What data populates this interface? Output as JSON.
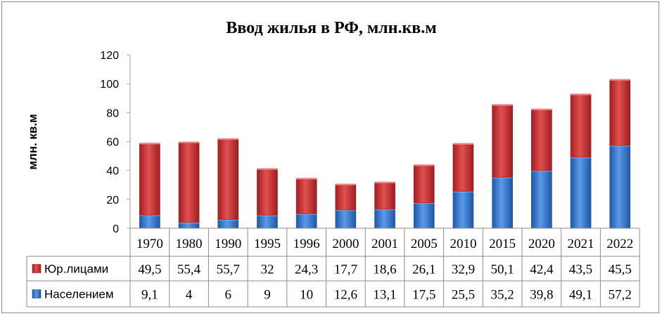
{
  "colors": {
    "legal_entities": "#c0282c",
    "population": "#2f6fc4",
    "gridline": "#a6a6a6",
    "border": "#8c8c8c"
  },
  "chart_data": {
    "type": "bar",
    "stacked": true,
    "title": "Ввод жилья в РФ, млн.кв.м",
    "xlabel": "",
    "ylabel": "млн. кв.м",
    "ylim": [
      0,
      120
    ],
    "yticks": [
      0,
      20,
      40,
      60,
      80,
      100,
      120
    ],
    "grid": false,
    "legend": "left, inside data table",
    "categories": [
      "1970",
      "1980",
      "1990",
      "1995",
      "1996",
      "2000",
      "2001",
      "2005",
      "2010",
      "2015",
      "2020",
      "2021",
      "2022"
    ],
    "series": [
      {
        "name": "Населением",
        "values": [
          9.1,
          4,
          6,
          9,
          10,
          12.6,
          13.1,
          17.5,
          25.5,
          35.2,
          39.8,
          49.1,
          57.2
        ],
        "labels": [
          "9,1",
          "4",
          "6",
          "9",
          "10",
          "12,6",
          "13,1",
          "17,5",
          "25,5",
          "35,2",
          "39,8",
          "49,1",
          "57,2"
        ]
      },
      {
        "name": "Юр.лицами",
        "values": [
          49.5,
          55.4,
          55.7,
          32,
          24.3,
          17.7,
          18.6,
          26.1,
          32.9,
          50.1,
          42.4,
          43.5,
          45.5
        ],
        "labels": [
          "49,5",
          "55,4",
          "55,7",
          "32",
          "24,3",
          "17,7",
          "18,6",
          "26,1",
          "32,9",
          "50,1",
          "42,4",
          "43,5",
          "45,5"
        ]
      }
    ]
  }
}
